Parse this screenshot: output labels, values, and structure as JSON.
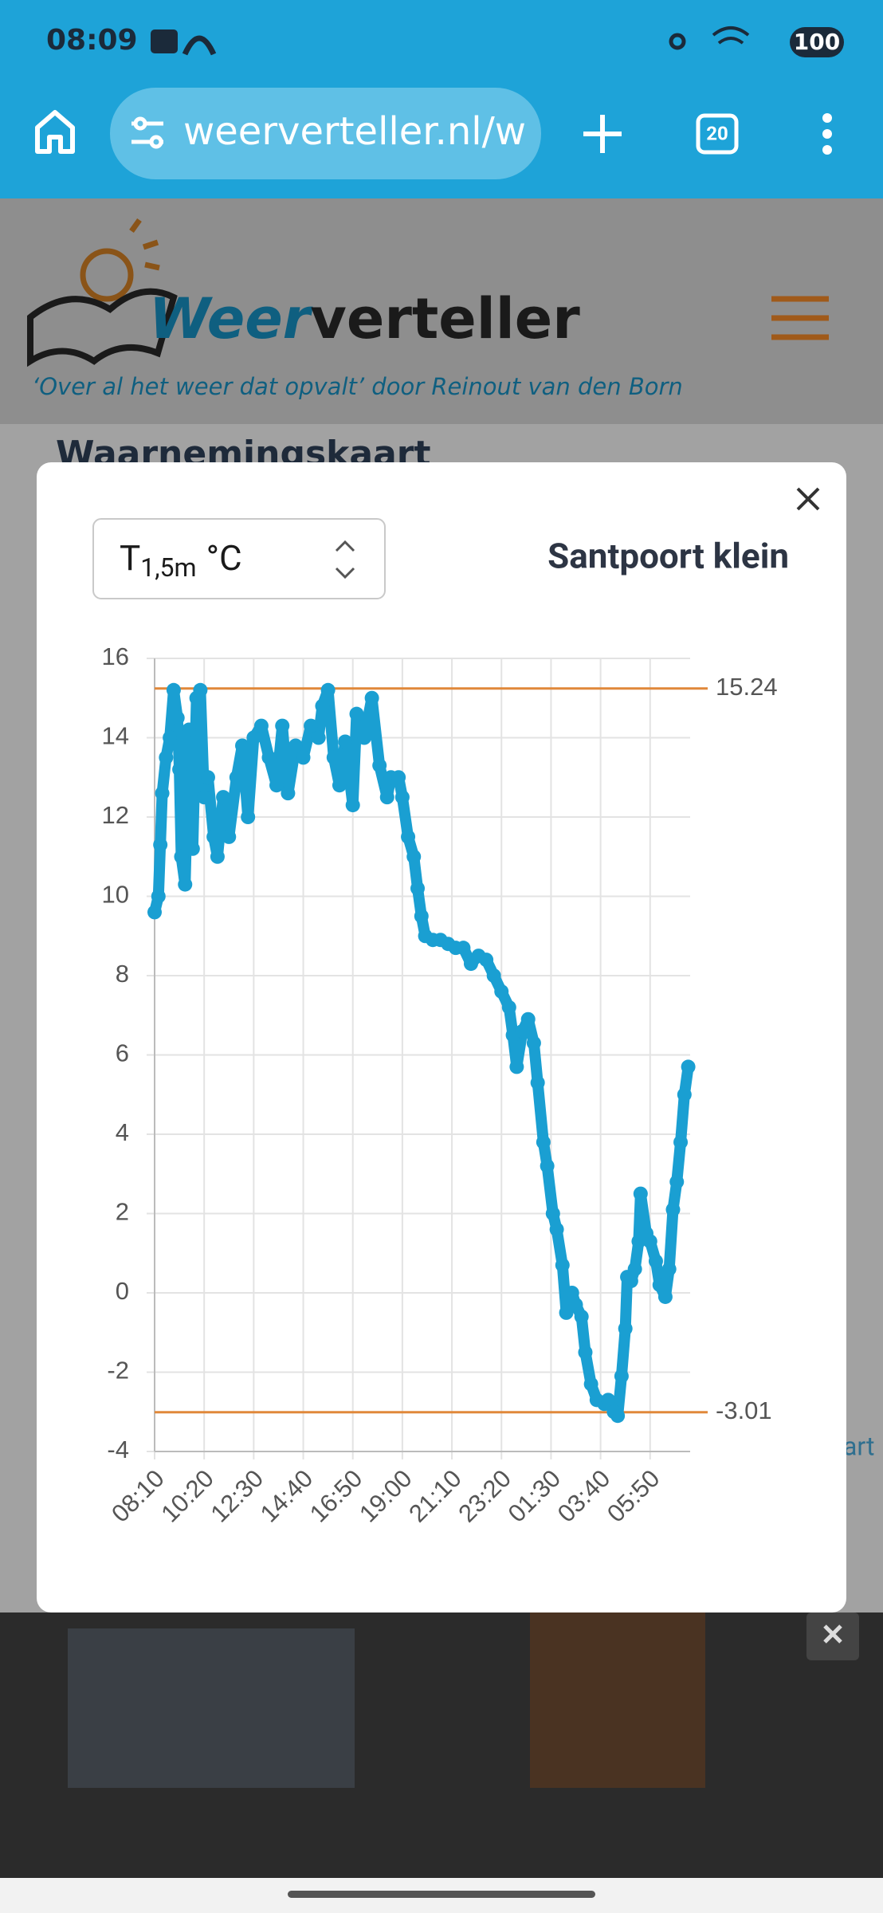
{
  "status_bar": {
    "time": "08:09",
    "battery": "100"
  },
  "browser": {
    "url": "weerverteller.nl/wa",
    "tabs": "20"
  },
  "site": {
    "logo_part1": "Weer",
    "logo_part2": "verteller",
    "tagline": "‘Over al het weer dat opvalt’ door Reinout van den Born"
  },
  "page": {
    "heading": "Waarnemingskaart",
    "side_text": "art"
  },
  "modal": {
    "select": {
      "base": "T",
      "sub": "1,5m",
      "unit": "°C"
    },
    "station": "Santpoort klein"
  },
  "chart_data": {
    "type": "line",
    "color": "#1a9fd2",
    "x": [
      "08:10",
      "08:20",
      "08:25",
      "08:30",
      "08:40",
      "08:50",
      "09:00",
      "09:10",
      "09:15",
      "09:20",
      "09:30",
      "09:40",
      "09:50",
      "10:00",
      "10:10",
      "10:20",
      "10:30",
      "10:45",
      "10:55",
      "11:10",
      "11:25",
      "11:45",
      "12:00",
      "12:15",
      "12:30",
      "12:50",
      "13:10",
      "13:30",
      "13:45",
      "14:00",
      "14:20",
      "14:40",
      "15:00",
      "15:20",
      "15:30",
      "15:45",
      "16:00",
      "16:15",
      "16:30",
      "16:50",
      "17:00",
      "17:20",
      "17:40",
      "18:00",
      "18:20",
      "18:30",
      "18:50",
      "19:00",
      "19:15",
      "19:30",
      "19:40",
      "19:50",
      "20:00",
      "20:20",
      "20:40",
      "21:00",
      "21:20",
      "21:40",
      "22:00",
      "22:20",
      "22:40",
      "23:00",
      "23:20",
      "23:40",
      "23:50",
      "00:00",
      "00:15",
      "00:30",
      "00:45",
      "00:55",
      "01:10",
      "01:20",
      "01:35",
      "01:45",
      "02:00",
      "02:10",
      "02:25",
      "02:35",
      "02:50",
      "03:00",
      "03:15",
      "03:30",
      "03:50",
      "04:00",
      "04:15",
      "04:25",
      "04:35",
      "04:45",
      "04:50",
      "05:00",
      "05:10",
      "05:20",
      "05:25",
      "05:40",
      "05:50",
      "06:05",
      "06:15",
      "06:30",
      "06:40",
      "06:50",
      "07:00",
      "07:10",
      "07:20",
      "07:30"
    ],
    "values": [
      9.6,
      10,
      11.3,
      12.6,
      13.5,
      14,
      15.2,
      14.5,
      13.2,
      11,
      10.3,
      14.2,
      11.2,
      15,
      15.2,
      12.5,
      13,
      11.5,
      11,
      12.5,
      11.5,
      13,
      13.8,
      12,
      14,
      14.3,
      13.5,
      12.8,
      14.3,
      12.6,
      13.8,
      13.5,
      14.3,
      14,
      14.8,
      15.2,
      13.5,
      12.8,
      13.9,
      12.3,
      14.6,
      14,
      15,
      13.3,
      12.5,
      13,
      13,
      12.5,
      11.5,
      11,
      10.2,
      9.5,
      9,
      8.9,
      8.9,
      8.8,
      8.7,
      8.7,
      8.3,
      8.5,
      8.4,
      8,
      7.6,
      7.2,
      6.5,
      5.7,
      6.6,
      6.9,
      6.3,
      5.3,
      3.8,
      3.2,
      2,
      1.6,
      0.7,
      -0.5,
      0,
      -0.3,
      -0.6,
      -1.5,
      -2.3,
      -2.7,
      -2.8,
      -2.7,
      -3,
      -3.1,
      -2.1,
      -0.9,
      0.4,
      0.3,
      0.6,
      1.3,
      2.5,
      1.5,
      1.3,
      0.8,
      0.2,
      -0.1,
      0.6,
      2.1,
      2.8,
      3.8,
      5,
      5.7
    ],
    "xlim": [
      "08:10",
      "07:35"
    ],
    "xticks": [
      "08:10",
      "10:20",
      "12:30",
      "14:40",
      "16:50",
      "19:00",
      "21:10",
      "23:20",
      "01:30",
      "03:40",
      "05:50"
    ],
    "ylim": [
      -4,
      16
    ],
    "yticks": [
      -4,
      -2,
      0,
      2,
      4,
      6,
      8,
      10,
      12,
      14,
      16
    ],
    "grid": true,
    "reference_lines": {
      "values": [
        15.24,
        -3.01
      ],
      "color": "#e0883a"
    }
  }
}
